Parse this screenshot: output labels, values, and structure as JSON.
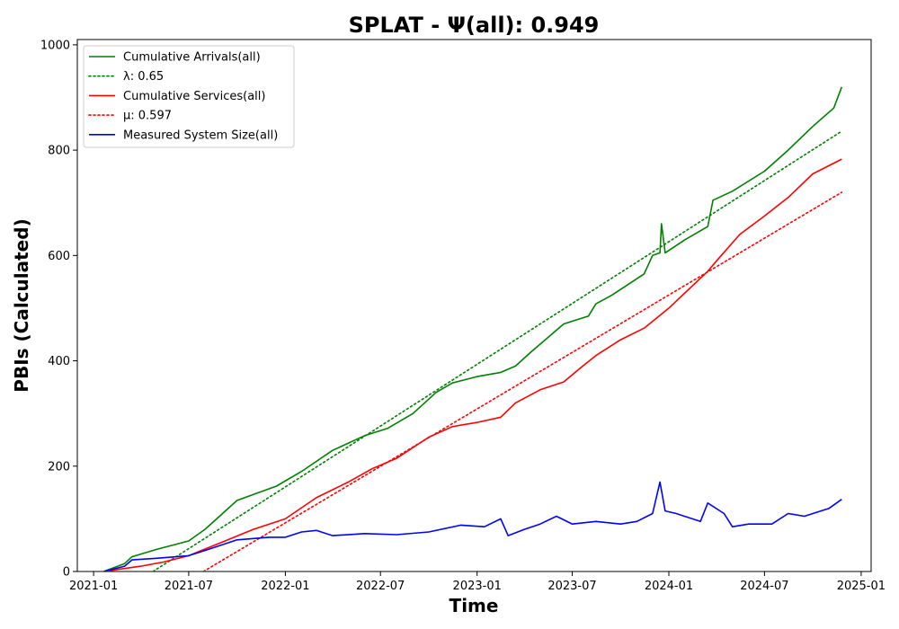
{
  "chart_data": {
    "type": "line",
    "title": "SPLAT -  Ψ(all): 0.949",
    "xlabel": "Time",
    "ylabel": "PBIs (Calculated)",
    "xlim": [
      "2020-12-01",
      "2025-01-20"
    ],
    "ylim": [
      0,
      1010
    ],
    "x_ticks": [
      "2021-01",
      "2021-07",
      "2022-01",
      "2022-07",
      "2023-01",
      "2023-07",
      "2024-01",
      "2024-07",
      "2025-01"
    ],
    "y_ticks": [
      0,
      200,
      400,
      600,
      800,
      1000
    ],
    "grid": false,
    "legend_position": "upper-left",
    "series": [
      {
        "name": "Cumulative Arrivals(all)",
        "color": "#008000",
        "style": "solid",
        "points": [
          [
            "2021-01-20",
            0
          ],
          [
            "2021-03-01",
            15
          ],
          [
            "2021-03-15",
            28
          ],
          [
            "2021-05-01",
            42
          ],
          [
            "2021-07-01",
            58
          ],
          [
            "2021-08-01",
            80
          ],
          [
            "2021-10-01",
            135
          ],
          [
            "2021-12-15",
            162
          ],
          [
            "2022-02-01",
            190
          ],
          [
            "2022-04-01",
            230
          ],
          [
            "2022-06-01",
            258
          ],
          [
            "2022-07-15",
            272
          ],
          [
            "2022-09-01",
            300
          ],
          [
            "2022-10-15",
            340
          ],
          [
            "2022-11-15",
            358
          ],
          [
            "2023-01-01",
            370
          ],
          [
            "2023-02-15",
            378
          ],
          [
            "2023-03-15",
            390
          ],
          [
            "2023-04-15",
            418
          ],
          [
            "2023-06-15",
            470
          ],
          [
            "2023-08-01",
            485
          ],
          [
            "2023-08-15",
            508
          ],
          [
            "2023-09-15",
            525
          ],
          [
            "2023-11-15",
            565
          ],
          [
            "2023-12-01",
            600
          ],
          [
            "2023-12-15",
            605
          ],
          [
            "2023-12-18",
            660
          ],
          [
            "2023-12-25",
            605
          ],
          [
            "2024-02-01",
            630
          ],
          [
            "2024-03-15",
            655
          ],
          [
            "2024-03-25",
            705
          ],
          [
            "2024-05-01",
            722
          ],
          [
            "2024-07-01",
            760
          ],
          [
            "2024-08-15",
            800
          ],
          [
            "2024-10-01",
            845
          ],
          [
            "2024-11-10",
            880
          ],
          [
            "2024-11-25",
            920
          ]
        ]
      },
      {
        "name": "λ: 0.65",
        "color": "#008000",
        "style": "dotted",
        "points": [
          [
            "2021-04-24",
            0
          ],
          [
            "2024-11-25",
            836
          ]
        ]
      },
      {
        "name": "Cumulative Services(all)",
        "color": "#ff0000",
        "style": "solid",
        "points": [
          [
            "2021-01-20",
            0
          ],
          [
            "2021-04-01",
            10
          ],
          [
            "2021-05-15",
            18
          ],
          [
            "2021-07-01",
            30
          ],
          [
            "2021-09-01",
            55
          ],
          [
            "2021-11-01",
            80
          ],
          [
            "2022-01-01",
            100
          ],
          [
            "2022-03-01",
            140
          ],
          [
            "2022-05-01",
            170
          ],
          [
            "2022-06-15",
            195
          ],
          [
            "2022-08-01",
            215
          ],
          [
            "2022-10-01",
            255
          ],
          [
            "2022-11-15",
            275
          ],
          [
            "2023-01-01",
            283
          ],
          [
            "2023-02-15",
            293
          ],
          [
            "2023-03-15",
            320
          ],
          [
            "2023-05-01",
            345
          ],
          [
            "2023-06-15",
            360
          ],
          [
            "2023-07-15",
            385
          ],
          [
            "2023-08-15",
            410
          ],
          [
            "2023-10-01",
            440
          ],
          [
            "2023-11-15",
            462
          ],
          [
            "2024-01-01",
            500
          ],
          [
            "2024-03-15",
            570
          ],
          [
            "2024-04-01",
            590
          ],
          [
            "2024-05-15",
            640
          ],
          [
            "2024-07-01",
            675
          ],
          [
            "2024-08-15",
            710
          ],
          [
            "2024-10-01",
            755
          ],
          [
            "2024-11-25",
            783
          ]
        ]
      },
      {
        "name": "μ: 0.597",
        "color": "#ff0000",
        "style": "dotted",
        "points": [
          [
            "2021-07-29",
            0
          ],
          [
            "2024-11-25",
            720
          ]
        ]
      },
      {
        "name": "Measured System Size(all)",
        "color": "#0000ff",
        "style": "solid",
        "points": [
          [
            "2021-01-20",
            0
          ],
          [
            "2021-03-01",
            10
          ],
          [
            "2021-03-15",
            22
          ],
          [
            "2021-05-01",
            25
          ],
          [
            "2021-07-01",
            30
          ],
          [
            "2021-08-01",
            40
          ],
          [
            "2021-10-01",
            60
          ],
          [
            "2021-12-01",
            65
          ],
          [
            "2022-01-01",
            65
          ],
          [
            "2022-02-01",
            75
          ],
          [
            "2022-03-01",
            78
          ],
          [
            "2022-04-01",
            68
          ],
          [
            "2022-06-01",
            72
          ],
          [
            "2022-08-01",
            70
          ],
          [
            "2022-10-01",
            75
          ],
          [
            "2022-12-01",
            88
          ],
          [
            "2023-01-15",
            85
          ],
          [
            "2023-02-15",
            100
          ],
          [
            "2023-03-01",
            68
          ],
          [
            "2023-04-01",
            80
          ],
          [
            "2023-05-01",
            90
          ],
          [
            "2023-06-01",
            105
          ],
          [
            "2023-07-01",
            90
          ],
          [
            "2023-08-15",
            95
          ],
          [
            "2023-10-01",
            90
          ],
          [
            "2023-11-01",
            95
          ],
          [
            "2023-12-01",
            110
          ],
          [
            "2023-12-15",
            170
          ],
          [
            "2023-12-25",
            115
          ],
          [
            "2024-01-15",
            110
          ],
          [
            "2024-03-01",
            95
          ],
          [
            "2024-03-15",
            130
          ],
          [
            "2024-04-15",
            110
          ],
          [
            "2024-05-01",
            85
          ],
          [
            "2024-06-01",
            90
          ],
          [
            "2024-07-15",
            90
          ],
          [
            "2024-08-15",
            110
          ],
          [
            "2024-09-15",
            105
          ],
          [
            "2024-11-01",
            120
          ],
          [
            "2024-11-25",
            137
          ]
        ]
      }
    ]
  }
}
